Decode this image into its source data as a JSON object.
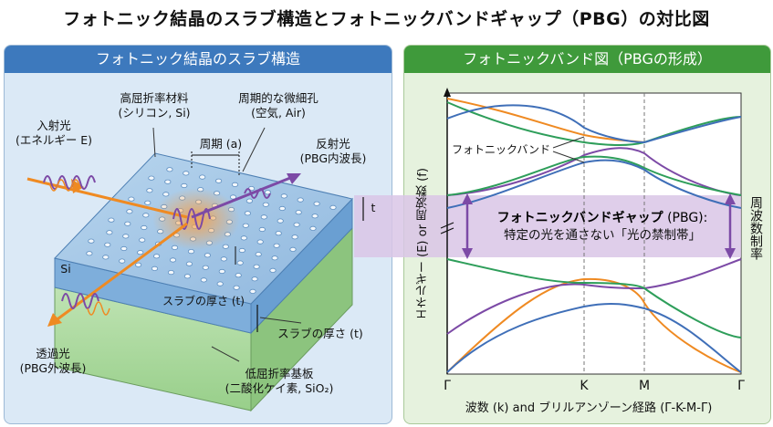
{
  "title": "フォトニック結晶のスラブ構造とフォトニックバンドギャップ（PBG）の対比図",
  "left_panel": {
    "header": "フォトニック結晶のスラブ構造",
    "high_index_label": [
      "高屈折率材料",
      "(シリコン, Si)"
    ],
    "holes_label": [
      "周期的な微細孔",
      "(空気, Air)"
    ],
    "incident_label": [
      "入射光",
      "(エネルギー E)"
    ],
    "period_label": "周期 (a)",
    "reflected_label": [
      "反射光",
      "(PBG内波長)"
    ],
    "t_label": "t",
    "si_label": "Si",
    "slab_inner_label": "スラブの厚さ (t)",
    "slab_outer_label": "スラブの厚さ (t)",
    "transmitted_label": [
      "透過光",
      "(PBG外波長)"
    ],
    "substrate_label": [
      "低屈折率基板",
      "(二酸化ケイ素, SiO₂)"
    ]
  },
  "right_panel": {
    "header": "フォトニックバンド図（PBGの形成）",
    "band_label": "フォトニックバンド",
    "pbg_title": "フォトニックバンドギャップ",
    "pbg_title_suffix": " (PBG):",
    "pbg_sub": "特定の光を通さない「光の禁制帯」",
    "y_axis_label": "エネルギー (E) or 周波数 (f)",
    "right_axis_label": "周波数制率",
    "x_ticks": [
      "Γ",
      "K",
      "M",
      "Γ"
    ],
    "x_axis_label": "波数 (k) and ブリルアンゾーン経路 (Γ-K-M-Γ)"
  },
  "colors": {
    "orange": "#ef8a22",
    "blue": "#3f6fb8",
    "green": "#2e9e5a",
    "purple": "#7c4aa6",
    "pbg_band": "#d9c6e6"
  }
}
